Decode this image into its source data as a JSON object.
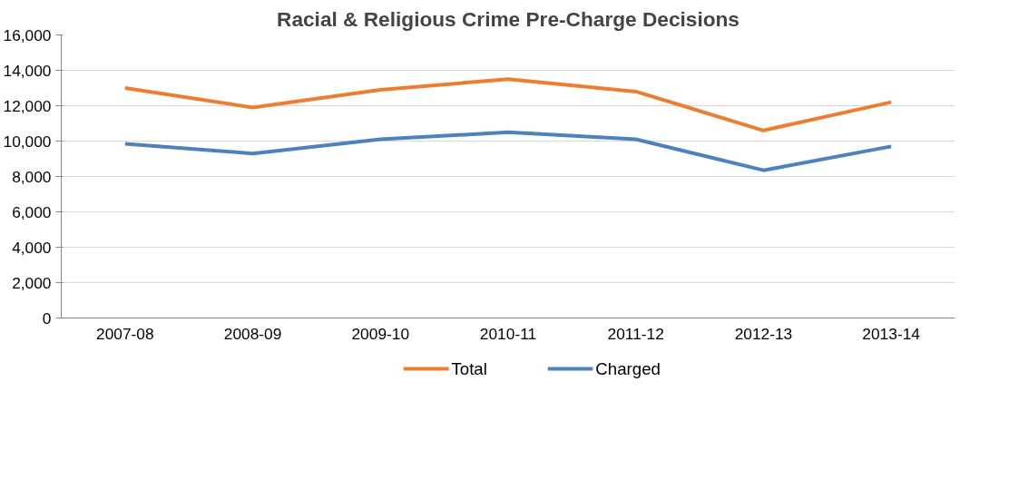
{
  "chart_data": {
    "type": "line",
    "title": "Racial & Religious Crime Pre-Charge Decisions",
    "categories": [
      "2007-08",
      "2008-09",
      "2009-10",
      "2010-11",
      "2011-12",
      "2012-13",
      "2013-14"
    ],
    "series": [
      {
        "name": "Total",
        "color": "#ed7d31",
        "values": [
          13000,
          11900,
          12900,
          13500,
          12800,
          10600,
          12200
        ]
      },
      {
        "name": "Charged",
        "color": "#4f81bd",
        "values": [
          9850,
          9300,
          10100,
          10500,
          10100,
          8350,
          9700
        ]
      }
    ],
    "ylim": [
      0,
      16000
    ],
    "yticks": [
      {
        "value": 0,
        "label": "0"
      },
      {
        "value": 2000,
        "label": "2,000"
      },
      {
        "value": 4000,
        "label": "4,000"
      },
      {
        "value": 6000,
        "label": "6,000"
      },
      {
        "value": 8000,
        "label": "8,000"
      },
      {
        "value": 10000,
        "label": "10,000"
      },
      {
        "value": 12000,
        "label": "12,000"
      },
      {
        "value": 14000,
        "label": "14,000"
      },
      {
        "value": 16000,
        "label": "16,000"
      }
    ],
    "grid": "y",
    "legend": "bottom",
    "marker": "none",
    "line_style": "solid"
  }
}
